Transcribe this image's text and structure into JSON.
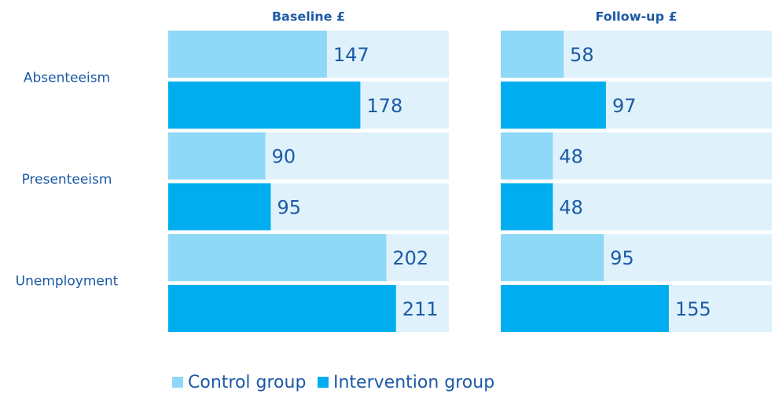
{
  "chart_data": {
    "type": "bar",
    "categories": [
      "Absenteeism",
      "Presenteeism",
      "Unemployment"
    ],
    "series": [
      {
        "name": "Control group",
        "color": "#8fd8f7"
      },
      {
        "name": "Intervention group",
        "color": "#00aeef"
      }
    ],
    "track_color": "#dff2fc",
    "panels": [
      {
        "title": "Baseline £",
        "xlim": [
          0,
          260
        ],
        "values": [
          [
            147,
            90,
            202
          ],
          [
            178,
            95,
            211
          ]
        ]
      },
      {
        "title": "Follow-up £",
        "xlim": [
          0,
          250
        ],
        "values": [
          [
            58,
            48,
            95
          ],
          [
            97,
            48,
            155
          ]
        ]
      }
    ]
  }
}
